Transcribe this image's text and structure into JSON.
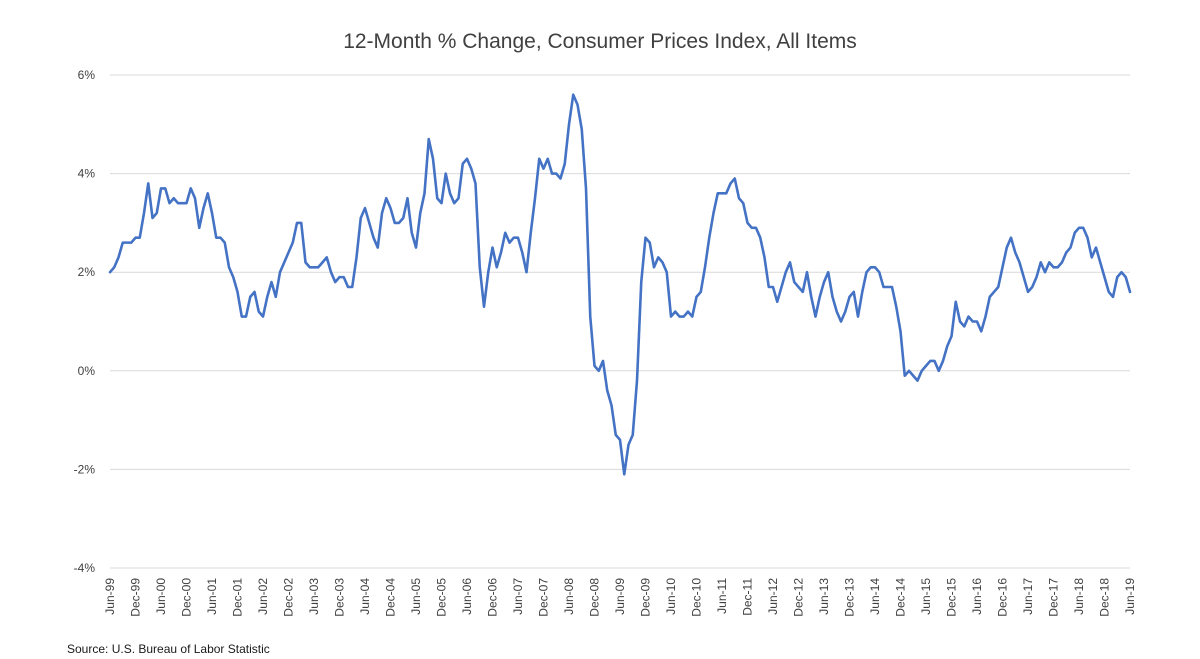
{
  "chart_data": {
    "type": "line",
    "title": "12-Month % Change, Consumer Prices Index, All Items",
    "xlabel": "",
    "ylabel": "",
    "ylim": [
      -4,
      6
    ],
    "y_ticks": [
      6,
      4,
      2,
      0,
      -2,
      -4
    ],
    "y_tick_labels": [
      "6%",
      "4%",
      "2%",
      "0%",
      "-2%",
      "-4%"
    ],
    "x_start": "Jun-99",
    "x_end": "Jun-19",
    "x_tick_labels": [
      "Jun-99",
      "Dec-99",
      "Jun-00",
      "Dec-00",
      "Jun-01",
      "Dec-01",
      "Jun-02",
      "Dec-02",
      "Jun-03",
      "Dec-03",
      "Jun-04",
      "Dec-04",
      "Jun-05",
      "Dec-05",
      "Jun-06",
      "Dec-06",
      "Jun-07",
      "Dec-07",
      "Jun-08",
      "Dec-08",
      "Jun-09",
      "Dec-09",
      "Jun-10",
      "Dec-10",
      "Jun-11",
      "Dec-11",
      "Jun-12",
      "Dec-12",
      "Jun-13",
      "Dec-13",
      "Jun-14",
      "Dec-14",
      "Jun-15",
      "Dec-15",
      "Jun-16",
      "Dec-16",
      "Jun-17",
      "Dec-17",
      "Jun-18",
      "Dec-18",
      "Jun-19"
    ],
    "grid": true,
    "legend": "none",
    "color": "#4472C4",
    "series": [
      {
        "values": [
          2.0,
          2.1,
          2.3,
          2.6,
          2.6,
          2.6,
          2.7,
          2.7,
          3.2,
          3.8,
          3.1,
          3.2,
          3.7,
          3.7,
          3.4,
          3.5,
          3.4,
          3.4,
          3.4,
          3.7,
          3.5,
          2.9,
          3.3,
          3.6,
          3.2,
          2.7,
          2.7,
          2.6,
          2.1,
          1.9,
          1.6,
          1.1,
          1.1,
          1.5,
          1.6,
          1.2,
          1.1,
          1.5,
          1.8,
          1.5,
          2.0,
          2.2,
          2.4,
          2.6,
          3.0,
          3.0,
          2.2,
          2.1,
          2.1,
          2.1,
          2.2,
          2.3,
          2.0,
          1.8,
          1.9,
          1.9,
          1.7,
          1.7,
          2.3,
          3.1,
          3.3,
          3.0,
          2.7,
          2.5,
          3.2,
          3.5,
          3.3,
          3.0,
          3.0,
          3.1,
          3.5,
          2.8,
          2.5,
          3.2,
          3.6,
          4.7,
          4.3,
          3.5,
          3.4,
          4.0,
          3.6,
          3.4,
          3.5,
          4.2,
          4.3,
          4.1,
          3.8,
          2.1,
          1.3,
          2.0,
          2.5,
          2.1,
          2.4,
          2.8,
          2.6,
          2.7,
          2.7,
          2.4,
          2.0,
          2.8,
          3.5,
          4.3,
          4.1,
          4.3,
          4.0,
          4.0,
          3.9,
          4.2,
          5.0,
          5.6,
          5.4,
          4.9,
          3.7,
          1.1,
          0.1,
          0.0,
          0.2,
          -0.4,
          -0.7,
          -1.3,
          -1.4,
          -2.1,
          -1.5,
          -1.3,
          -0.2,
          1.8,
          2.7,
          2.6,
          2.1,
          2.3,
          2.2,
          2.0,
          1.1,
          1.2,
          1.1,
          1.1,
          1.2,
          1.1,
          1.5,
          1.6,
          2.1,
          2.7,
          3.2,
          3.6,
          3.6,
          3.6,
          3.8,
          3.9,
          3.5,
          3.4,
          3.0,
          2.9,
          2.9,
          2.7,
          2.3,
          1.7,
          1.7,
          1.4,
          1.7,
          2.0,
          2.2,
          1.8,
          1.7,
          1.6,
          2.0,
          1.5,
          1.1,
          1.5,
          1.8,
          2.0,
          1.5,
          1.2,
          1.0,
          1.2,
          1.5,
          1.6,
          1.1,
          1.6,
          2.0,
          2.1,
          2.1,
          2.0,
          1.7,
          1.7,
          1.7,
          1.3,
          0.8,
          -0.1,
          0.0,
          -0.1,
          -0.2,
          0.0,
          0.1,
          0.2,
          0.2,
          0.0,
          0.2,
          0.5,
          0.7,
          1.4,
          1.0,
          0.9,
          1.1,
          1.0,
          1.0,
          0.8,
          1.1,
          1.5,
          1.6,
          1.7,
          2.1,
          2.5,
          2.7,
          2.4,
          2.2,
          1.9,
          1.6,
          1.7,
          1.9,
          2.2,
          2.0,
          2.2,
          2.1,
          2.1,
          2.2,
          2.4,
          2.5,
          2.8,
          2.9,
          2.9,
          2.7,
          2.3,
          2.5,
          2.2,
          1.9,
          1.6,
          1.5,
          1.9,
          2.0,
          1.9,
          1.6
        ]
      }
    ]
  },
  "source_note": "Source: U.S. Bureau of Labor Statistic"
}
